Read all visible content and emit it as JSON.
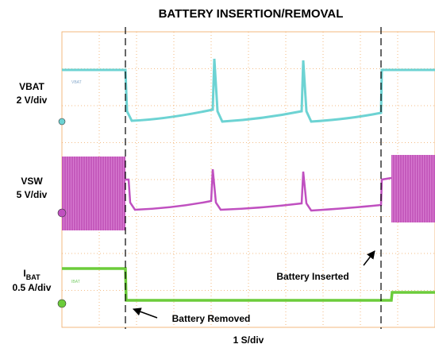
{
  "title": "BATTERY INSERTION/REMOVAL",
  "channels": [
    {
      "name": "VBAT",
      "scale": "2 V/div",
      "tag": "VBAT"
    },
    {
      "name": "VSW",
      "scale": "5 V/div"
    },
    {
      "name": "I",
      "name_sub": "BAT",
      "scale": "0.5 A/div",
      "tag": "IBAT"
    }
  ],
  "annotations": [
    "Battery Inserted",
    "Battery Removed"
  ],
  "time_scale": "1 S/div"
}
